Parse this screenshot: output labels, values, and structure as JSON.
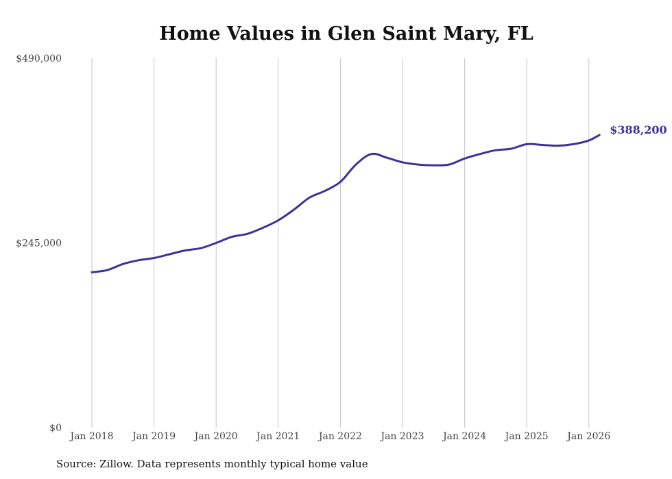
{
  "chart_data": {
    "type": "line",
    "title": "Home Values in Glen Saint Mary, FL",
    "xlabel": "",
    "ylabel": "",
    "ylim": [
      0,
      490000
    ],
    "xlim": [
      2017.6,
      2026.9
    ],
    "y_ticks": [
      0,
      245000,
      490000
    ],
    "y_tick_labels": [
      "$0",
      "$245,000",
      "$490,000"
    ],
    "x_ticks": [
      2018,
      2019,
      2020,
      2021,
      2022,
      2023,
      2024,
      2025,
      2026
    ],
    "x_tick_labels": [
      "Jan 2018",
      "Jan 2019",
      "Jan 2020",
      "Jan 2021",
      "Jan 2022",
      "Jan 2023",
      "Jan 2024",
      "Jan 2025",
      "Jan 2026"
    ],
    "grid": "vertical",
    "series": [
      {
        "name": "Typical home value",
        "color": "#3a3399",
        "x": [
          2018.0,
          2018.25,
          2018.5,
          2018.75,
          2019.0,
          2019.25,
          2019.5,
          2019.75,
          2020.0,
          2020.25,
          2020.5,
          2020.75,
          2021.0,
          2021.25,
          2021.5,
          2021.75,
          2022.0,
          2022.25,
          2022.5,
          2022.75,
          2023.0,
          2023.25,
          2023.5,
          2023.75,
          2024.0,
          2024.25,
          2024.5,
          2024.75,
          2025.0,
          2025.25,
          2025.5,
          2025.75,
          2026.0,
          2026.17
        ],
        "values": [
          206000,
          209000,
          217000,
          222000,
          225000,
          230000,
          235000,
          238000,
          245000,
          253000,
          257000,
          265000,
          275000,
          289000,
          305000,
          314000,
          326000,
          349000,
          363000,
          358000,
          352000,
          349000,
          348000,
          349000,
          357000,
          363000,
          368000,
          370000,
          376000,
          375000,
          374000,
          376000,
          381000,
          388200
        ]
      }
    ],
    "end_label": "$388,200"
  },
  "source": "Source: Zillow. Data represents monthly typical home value"
}
